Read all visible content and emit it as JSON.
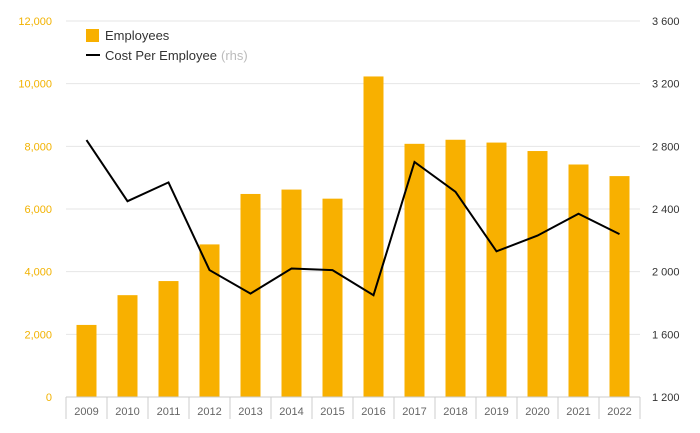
{
  "chart_data": {
    "type": "bar+line",
    "categories": [
      "2009",
      "2010",
      "2011",
      "2012",
      "2013",
      "2014",
      "2015",
      "2016",
      "2017",
      "2018",
      "2019",
      "2020",
      "2021",
      "2022"
    ],
    "series": [
      {
        "name": "Employees",
        "type": "bar",
        "axis": "left",
        "values": [
          2300,
          3250,
          3700,
          4870,
          6480,
          6620,
          6330,
          10230,
          8080,
          8210,
          8120,
          7850,
          7420,
          7050
        ]
      },
      {
        "name": "Cost Per Employee",
        "suffix": "(rhs)",
        "type": "line",
        "axis": "right",
        "values": [
          2840,
          2450,
          2570,
          2010,
          1860,
          2020,
          2010,
          1850,
          2700,
          2510,
          2130,
          2230,
          2370,
          2240
        ]
      }
    ],
    "left_axis": {
      "min": 0,
      "max": 12000,
      "ticks": [
        0,
        2000,
        4000,
        6000,
        8000,
        10000,
        12000
      ],
      "tick_labels": [
        "0",
        "2,000",
        "4,000",
        "6,000",
        "8,000",
        "10,000",
        "12,000"
      ]
    },
    "right_axis": {
      "min": 1200,
      "max": 3600,
      "ticks": [
        1200,
        1600,
        2000,
        2400,
        2800,
        3200,
        3600
      ],
      "tick_labels": [
        "1 200",
        "1 600",
        "2 000",
        "2 400",
        "2 800",
        "3 200",
        "3 600"
      ]
    },
    "legend": {
      "position": "top-left"
    }
  },
  "colors": {
    "bar": "#f8b000",
    "line": "#000000",
    "grid": "#e6e6e6",
    "axis": "#cccccc",
    "left_tick": "#f2b200",
    "right_tick": "#333333"
  }
}
